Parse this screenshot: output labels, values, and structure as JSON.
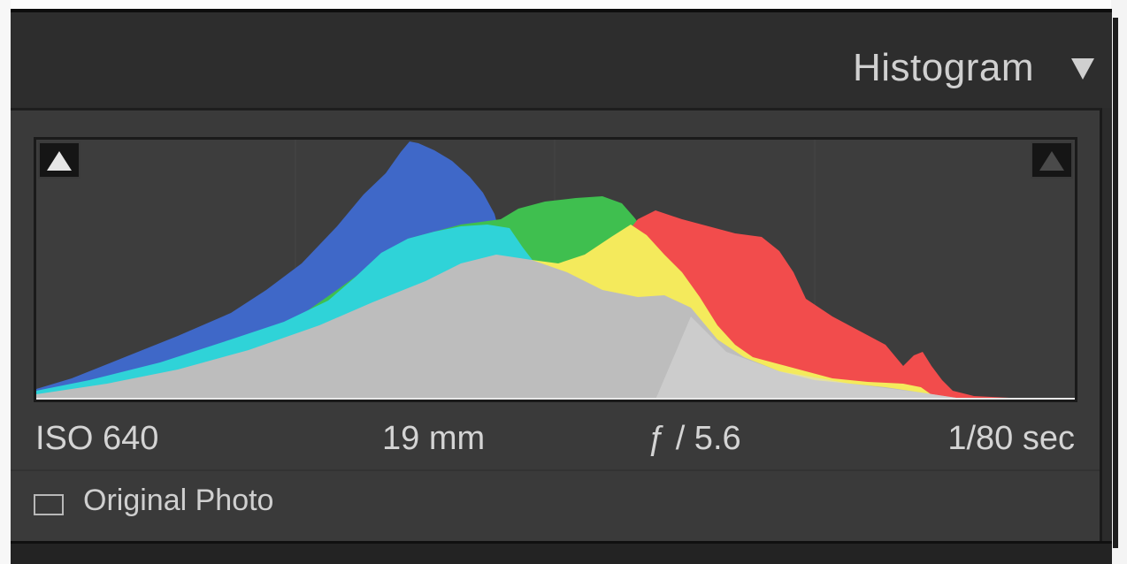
{
  "panel": {
    "title": "Histogram",
    "collapse_icon": "triangle-down-icon"
  },
  "histogram": {
    "shadow_clipping_icon": "triangle-up-icon",
    "highlight_clipping_icon": "triangle-up-icon",
    "background_color": "#3d3d3d",
    "channel_colors": {
      "blue": "#3f68c8",
      "cyan": "#2fd3d8",
      "green": "#3fbf4f",
      "yellow": "#f4ea5c",
      "red": "#f24c4c",
      "luminance": "#bdbdbd"
    }
  },
  "exif": {
    "iso": "ISO 640",
    "focal_length": "19 mm",
    "aperture": "ƒ / 5.6",
    "shutter": "1/80 sec"
  },
  "original_photo": {
    "label": "Original Photo",
    "checked": false
  }
}
